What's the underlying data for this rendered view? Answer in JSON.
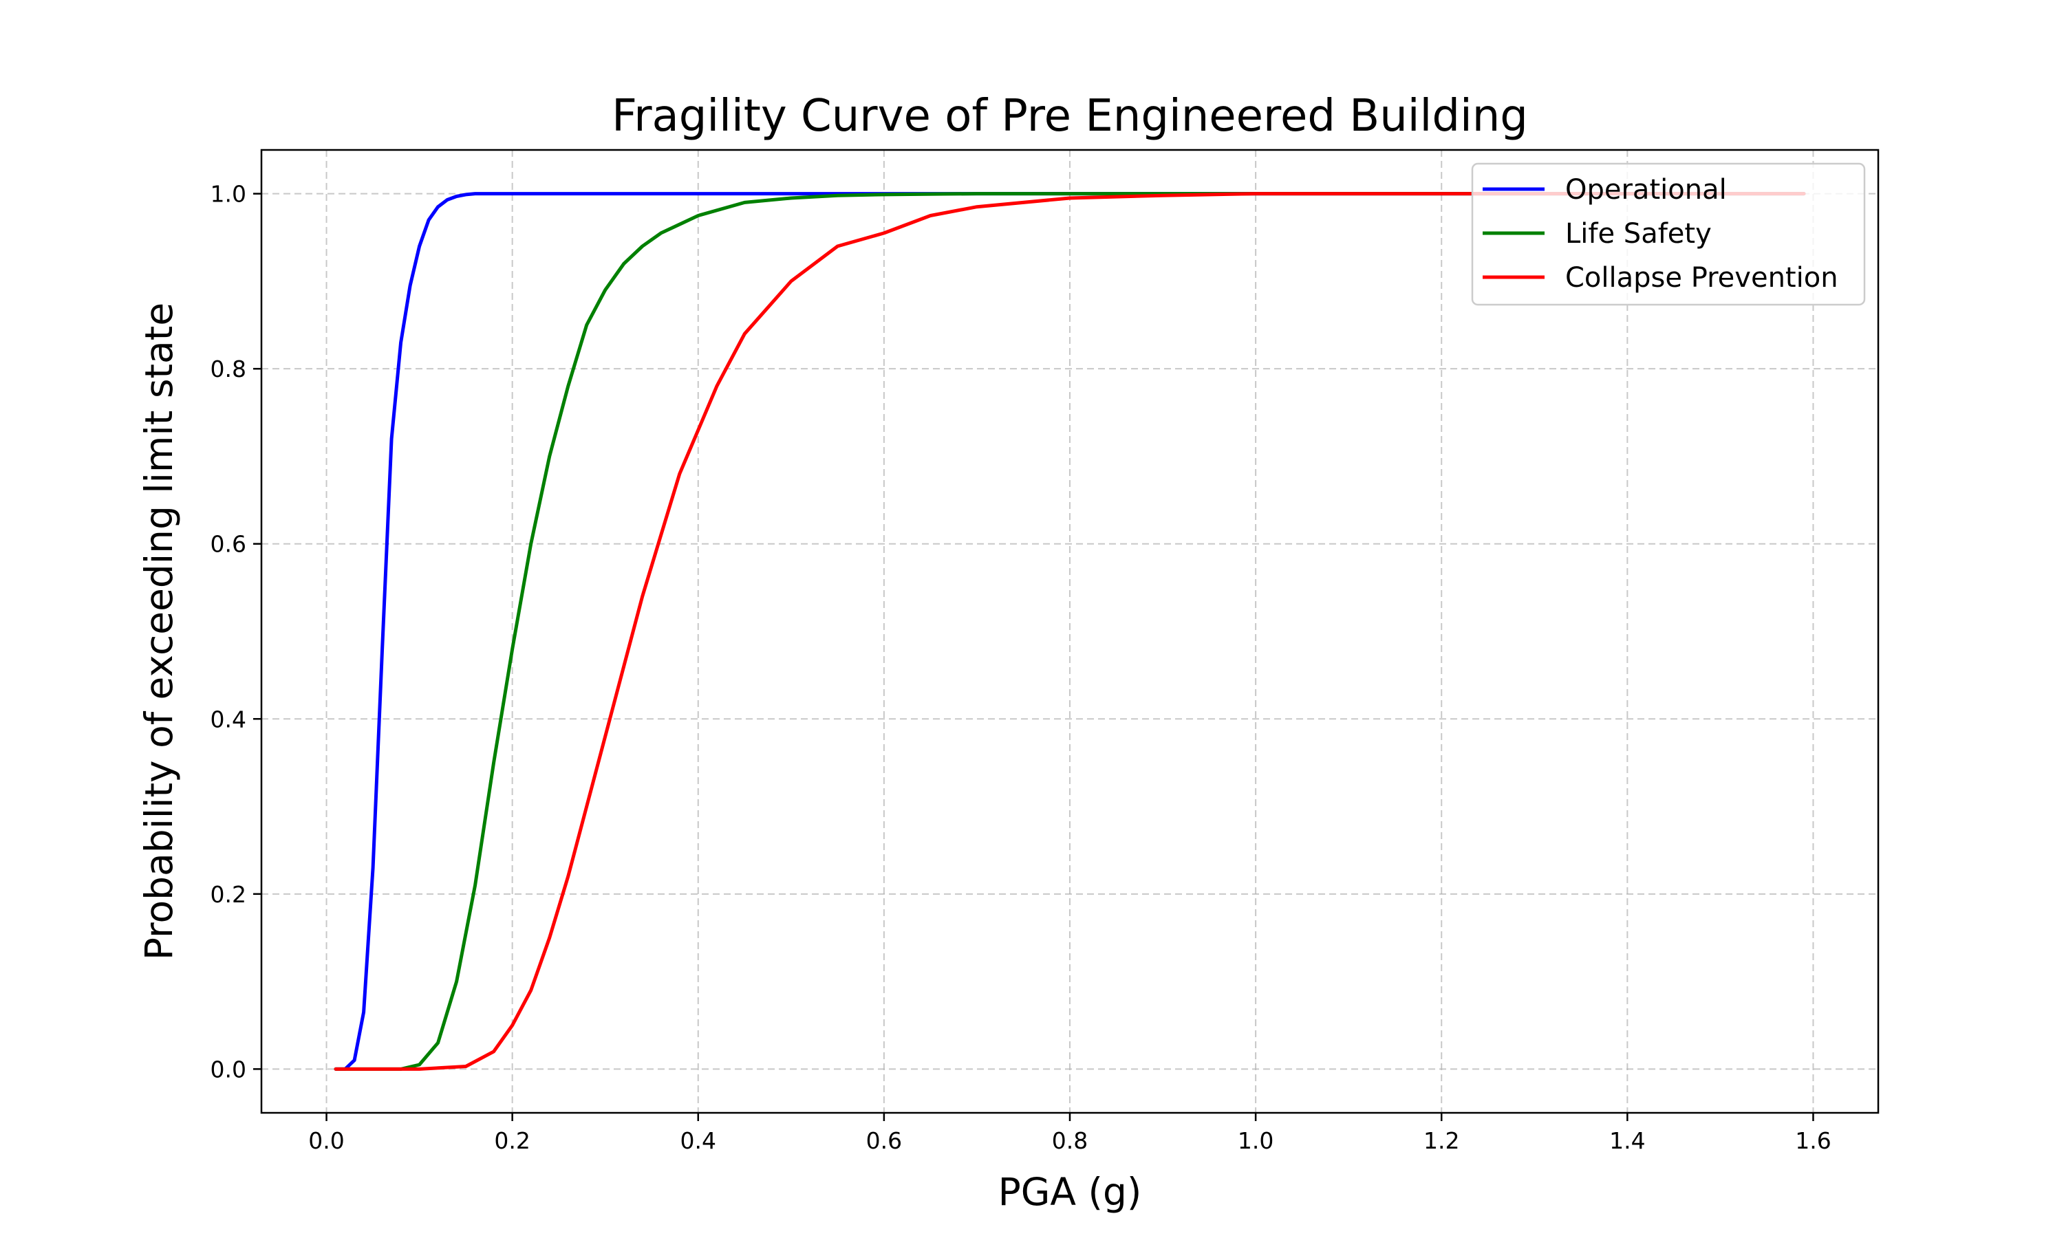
{
  "chart_data": {
    "type": "line",
    "title": "Fragility Curve of Pre Engineered Building",
    "xlabel": "PGA (g)",
    "ylabel": "Probability of exceeding limit state",
    "xlim": [
      -0.07,
      1.67
    ],
    "ylim": [
      -0.05,
      1.05
    ],
    "xticks": [
      "0.0",
      "0.2",
      "0.4",
      "0.6",
      "0.8",
      "1.0",
      "1.2",
      "1.4",
      "1.6"
    ],
    "yticks": [
      "0.0",
      "0.2",
      "0.4",
      "0.6",
      "0.8",
      "1.0"
    ],
    "grid": true,
    "grid_style": "dashed",
    "legend_position": "top-right",
    "series": [
      {
        "name": "Operational",
        "color": "#0000ff",
        "x": [
          0.01,
          0.02,
          0.03,
          0.04,
          0.05,
          0.06,
          0.07,
          0.08,
          0.09,
          0.1,
          0.11,
          0.12,
          0.13,
          0.14,
          0.15,
          0.16,
          0.17,
          0.18,
          0.2,
          0.25,
          0.3,
          0.4,
          0.6,
          0.8,
          1.0,
          1.2,
          1.4,
          1.59
        ],
        "y": [
          0.0,
          0.0,
          0.01,
          0.065,
          0.23,
          0.48,
          0.72,
          0.83,
          0.895,
          0.94,
          0.97,
          0.985,
          0.993,
          0.997,
          0.999,
          1.0,
          1.0,
          1.0,
          1.0,
          1.0,
          1.0,
          1.0,
          1.0,
          1.0,
          1.0,
          1.0,
          1.0,
          1.0
        ]
      },
      {
        "name": "Life Safety",
        "color": "#008000",
        "x": [
          0.01,
          0.05,
          0.08,
          0.1,
          0.12,
          0.14,
          0.16,
          0.18,
          0.2,
          0.22,
          0.24,
          0.26,
          0.28,
          0.3,
          0.32,
          0.34,
          0.36,
          0.38,
          0.4,
          0.45,
          0.5,
          0.55,
          0.6,
          0.7,
          0.8,
          1.0,
          1.2,
          1.4,
          1.59
        ],
        "y": [
          0.0,
          0.0,
          0.0,
          0.005,
          0.03,
          0.1,
          0.21,
          0.35,
          0.48,
          0.6,
          0.7,
          0.78,
          0.85,
          0.89,
          0.92,
          0.94,
          0.955,
          0.965,
          0.975,
          0.99,
          0.995,
          0.998,
          0.999,
          1.0,
          1.0,
          1.0,
          1.0,
          1.0,
          1.0
        ]
      },
      {
        "name": "Collapse Prevention",
        "color": "#ff0000",
        "x": [
          0.01,
          0.1,
          0.15,
          0.18,
          0.2,
          0.22,
          0.24,
          0.26,
          0.28,
          0.3,
          0.32,
          0.34,
          0.36,
          0.38,
          0.4,
          0.42,
          0.45,
          0.5,
          0.55,
          0.6,
          0.65,
          0.7,
          0.8,
          0.9,
          1.0,
          1.2,
          1.4,
          1.59
        ],
        "y": [
          0.0,
          0.0,
          0.003,
          0.02,
          0.05,
          0.09,
          0.15,
          0.22,
          0.3,
          0.38,
          0.46,
          0.54,
          0.61,
          0.68,
          0.73,
          0.78,
          0.84,
          0.9,
          0.94,
          0.955,
          0.975,
          0.985,
          0.995,
          0.998,
          1.0,
          1.0,
          1.0,
          1.0
        ]
      }
    ]
  }
}
